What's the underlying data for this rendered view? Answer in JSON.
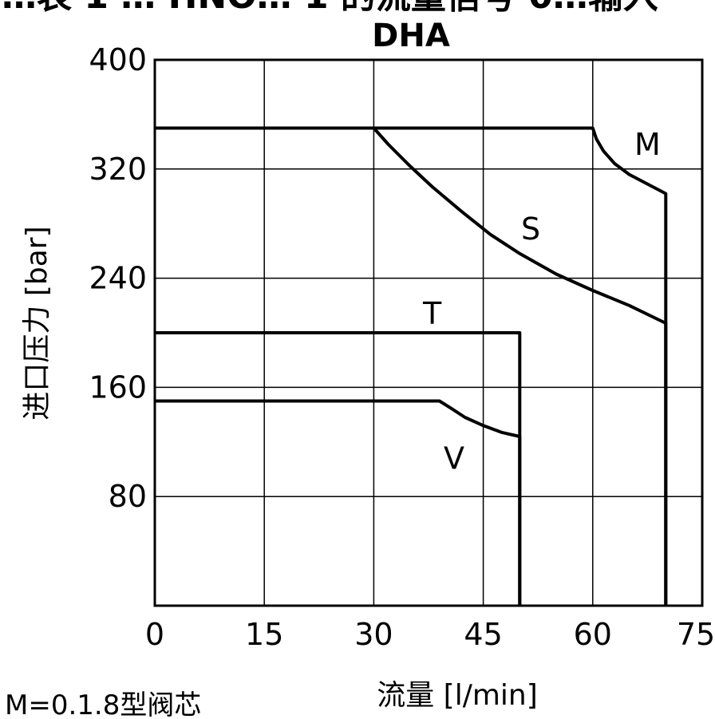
{
  "header_clipped_text": "…表 1 … HNO… 1 的流量信号 0…输入",
  "chart_data": {
    "type": "line",
    "title": "DHA",
    "xlabel": "流量 [l/min]",
    "ylabel": "进口压力 [bar]",
    "xlim": [
      0,
      75
    ],
    "ylim": [
      0,
      400
    ],
    "x_ticks": [
      "0",
      "15",
      "30",
      "45",
      "60",
      "75"
    ],
    "y_ticks": [
      "80",
      "160",
      "240",
      "320",
      "400"
    ],
    "x_tick_values": [
      0,
      15,
      30,
      45,
      60,
      75
    ],
    "y_tick_values": [
      80,
      160,
      240,
      320,
      400
    ],
    "grid": true,
    "series": [
      {
        "name": "M",
        "label_pos": [
          67.5,
          338
        ],
        "x": [
          0,
          60,
          60.5,
          61.5,
          63,
          65,
          67.5,
          70,
          70
        ],
        "y": [
          350,
          350,
          342,
          333,
          324,
          316,
          309,
          302,
          0
        ]
      },
      {
        "name": "S",
        "label_pos": [
          51.5,
          276
        ],
        "x": [
          0,
          30,
          32,
          35,
          38,
          42,
          46,
          50,
          55,
          60,
          65,
          70,
          70
        ],
        "y": [
          350,
          350,
          338,
          322,
          307,
          289,
          272,
          258,
          243,
          231,
          220,
          207,
          0
        ]
      },
      {
        "name": "T",
        "label_pos": [
          38,
          214
        ],
        "x": [
          0,
          50,
          50
        ],
        "y": [
          200,
          200,
          0
        ]
      },
      {
        "name": "V",
        "label_pos": [
          41,
          108
        ],
        "x": [
          0,
          39,
          40.5,
          42.5,
          45,
          47.5,
          50,
          50
        ],
        "y": [
          150,
          150,
          145,
          138,
          132,
          127,
          124,
          0
        ]
      }
    ],
    "footnote": "M=0.1.8型阀芯"
  },
  "colors": {
    "line": "#000000",
    "background": "#ffffff"
  }
}
